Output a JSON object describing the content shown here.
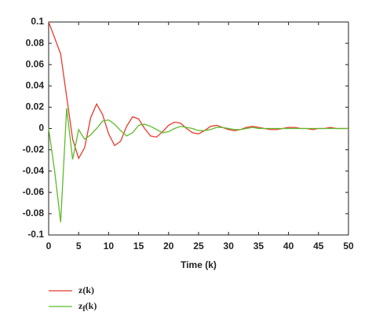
{
  "chart_data": {
    "type": "line",
    "x_label": "Time (k)",
    "x": [
      0,
      1,
      2,
      3,
      4,
      5,
      6,
      7,
      8,
      9,
      10,
      11,
      12,
      13,
      14,
      15,
      16,
      17,
      18,
      19,
      20,
      21,
      22,
      23,
      24,
      25,
      26,
      27,
      28,
      29,
      30,
      31,
      32,
      33,
      34,
      35,
      36,
      37,
      38,
      39,
      40,
      41,
      42,
      43,
      44,
      45,
      46,
      47,
      48,
      49,
      50
    ],
    "series": [
      {
        "name": "z(k)",
        "color": "#e8392a",
        "values": [
          0.1,
          0.085,
          0.07,
          0.03,
          -0.01,
          -0.028,
          -0.018,
          0.01,
          0.023,
          0.013,
          -0.005,
          -0.016,
          -0.012,
          0.002,
          0.011,
          0.009,
          0,
          -0.007,
          -0.008,
          -0.003,
          0.003,
          0.006,
          0.005,
          0,
          -0.004,
          -0.005,
          -0.002,
          0.002,
          0.003,
          0.001,
          -0.001,
          -0.002,
          -0.001,
          0.001,
          0.002,
          0.001,
          0,
          -0.001,
          -0.001,
          0,
          0.001,
          0.001,
          0,
          0,
          -0.001,
          0,
          0,
          0.001,
          0,
          0,
          0
        ]
      },
      {
        "name": "zf(k)",
        "color": "#5dbb2a",
        "values": [
          0,
          -0.04,
          -0.088,
          0.019,
          -0.029,
          -0.001,
          -0.01,
          -0.006,
          0,
          0.007,
          0.008,
          0.004,
          -0.002,
          -0.007,
          -0.004,
          0.003,
          0.004,
          0.002,
          -0.001,
          -0.004,
          -0.003,
          0,
          0.002,
          0.001,
          0,
          -0.002,
          -0.002,
          -0.001,
          0.001,
          0.001,
          0,
          -0.001,
          -0.001,
          0,
          0.001,
          0,
          0,
          0,
          0,
          0,
          0,
          0,
          0,
          0,
          0,
          0,
          0,
          0,
          0,
          0,
          0
        ]
      }
    ],
    "xlim": [
      0,
      50
    ],
    "xticks": [
      0,
      5,
      10,
      15,
      20,
      25,
      30,
      35,
      40,
      45,
      50
    ],
    "ylim": [
      -0.1,
      0.1
    ],
    "yticks": [
      -0.1,
      -0.08,
      -0.06,
      -0.04,
      -0.02,
      0,
      0.02,
      0.04,
      0.06,
      0.08,
      0.1
    ],
    "grid": false
  }
}
